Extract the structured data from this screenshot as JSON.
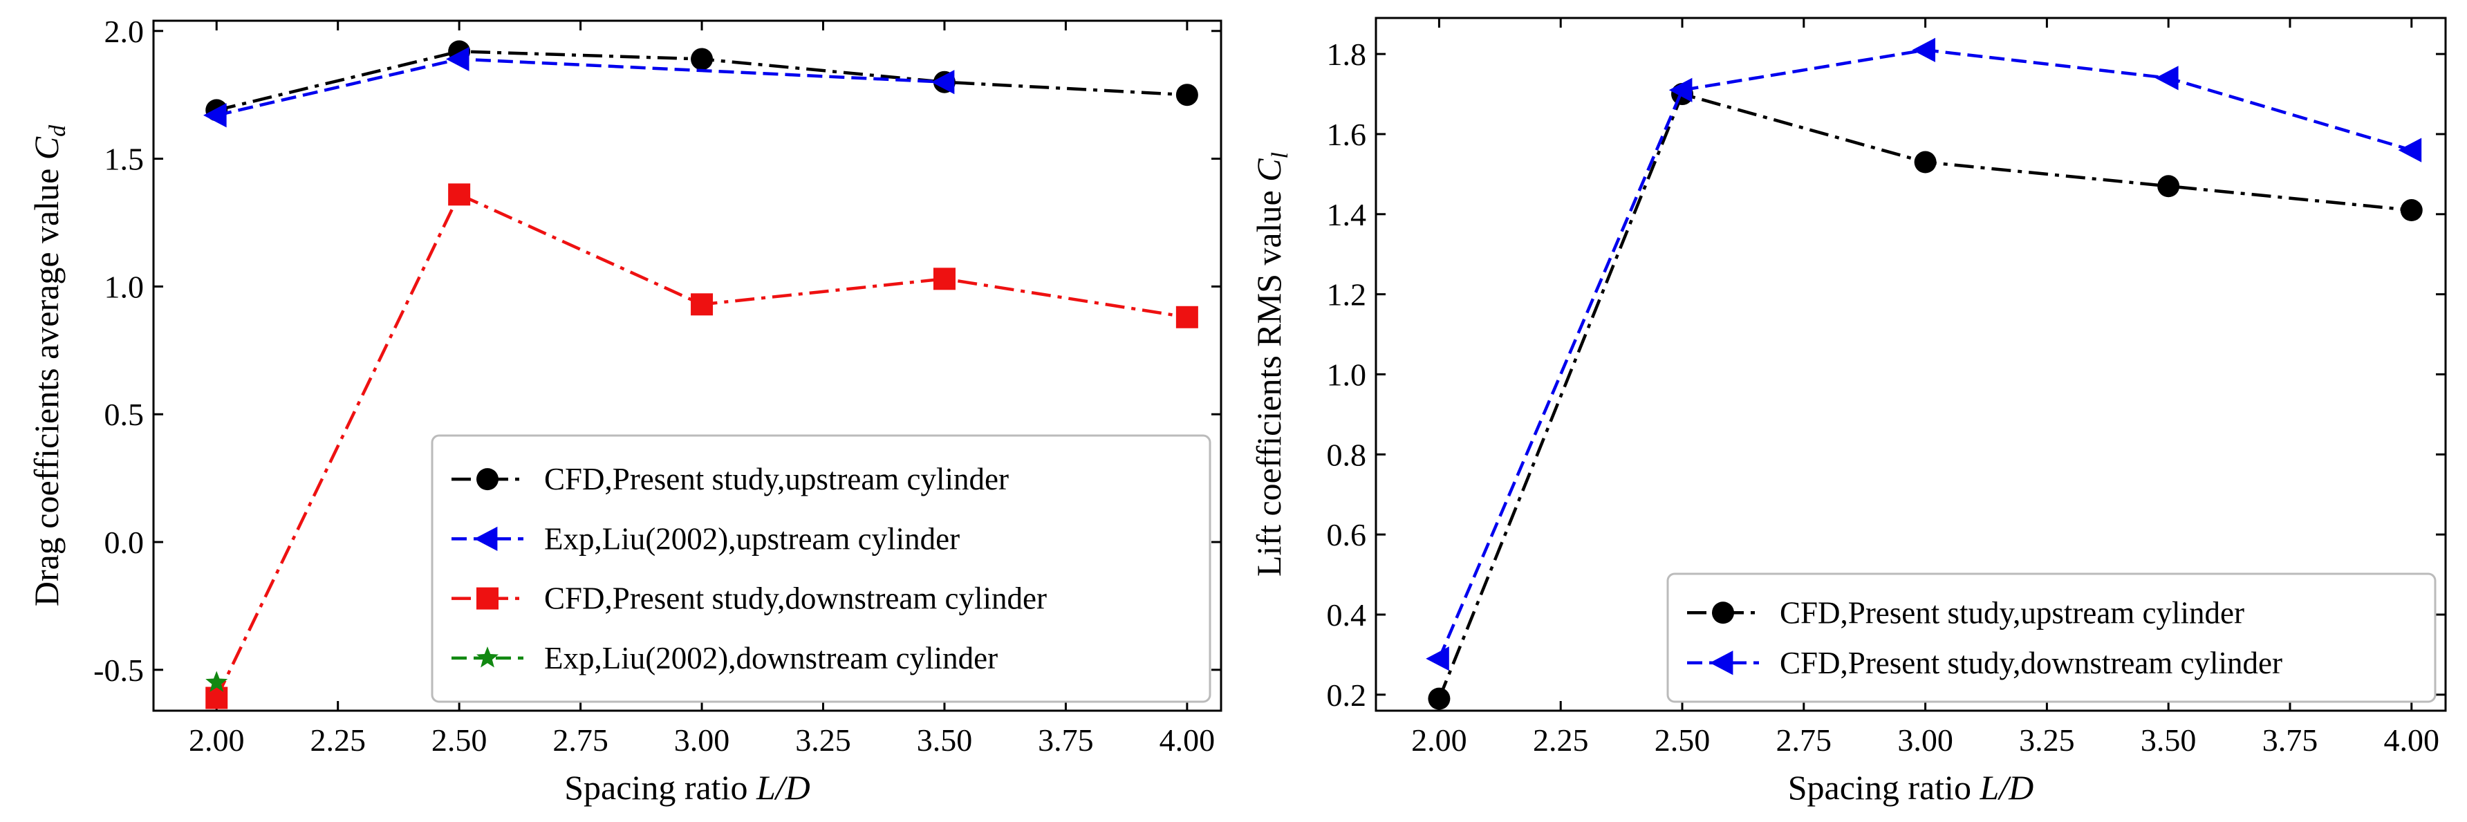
{
  "chart_data": [
    {
      "type": "line",
      "id": "drag",
      "title": "",
      "xlabel": "Spacing ratio",
      "xlabel_italic": "L/D",
      "ylabel": "Drag coefficients average value",
      "ylabel_symbol": "C",
      "ylabel_sub": "d",
      "xlim": [
        1.87,
        4.07
      ],
      "ylim": [
        -0.66,
        2.04
      ],
      "xticks": [
        2.0,
        2.25,
        2.5,
        2.75,
        3.0,
        3.25,
        3.5,
        3.75,
        4.0
      ],
      "xtick_labels": [
        "2.00",
        "2.25",
        "2.50",
        "2.75",
        "3.00",
        "3.25",
        "3.50",
        "3.75",
        "4.00"
      ],
      "yticks": [
        -0.5,
        0.0,
        0.5,
        1.0,
        1.5,
        2.0
      ],
      "ytick_labels": [
        "-0.5",
        "0.0",
        "0.5",
        "1.0",
        "1.5",
        "2.0"
      ],
      "legend_position": "lower-right",
      "series": [
        {
          "name": "CFD,Present study,upstream cylinder",
          "color": "#000000",
          "marker": "circle",
          "dash": "dashdot",
          "x": [
            2.0,
            2.5,
            3.0,
            3.5,
            4.0
          ],
          "y": [
            1.69,
            1.92,
            1.89,
            1.8,
            1.75
          ]
        },
        {
          "name": "Exp,Liu(2002),upstream cylinder",
          "color": "#0000ee",
          "marker": "triangle-left",
          "dash": "dashed",
          "x": [
            2.0,
            2.5,
            3.5
          ],
          "y": [
            1.67,
            1.89,
            1.8
          ]
        },
        {
          "name": "CFD,Present study,downstream cylinder",
          "color": "#ee1111",
          "marker": "square",
          "dash": "dashdot",
          "x": [
            2.0,
            2.5,
            3.0,
            3.5,
            4.0
          ],
          "y": [
            -0.61,
            1.36,
            0.93,
            1.03,
            0.88
          ]
        },
        {
          "name": "Exp,Liu(2002),downstream cylinder",
          "color": "#118811",
          "marker": "star",
          "dash": "dashed",
          "x": [
            2.0
          ],
          "y": [
            -0.55
          ]
        }
      ]
    },
    {
      "type": "line",
      "id": "lift",
      "title": "",
      "xlabel": "Spacing ratio",
      "xlabel_italic": "L/D",
      "ylabel": "Lift coefficients RMS value",
      "ylabel_symbol": "C",
      "ylabel_sub": "l",
      "xlim": [
        1.87,
        4.07
      ],
      "ylim": [
        0.16,
        1.89
      ],
      "xticks": [
        2.0,
        2.25,
        2.5,
        2.75,
        3.0,
        3.25,
        3.5,
        3.75,
        4.0
      ],
      "xtick_labels": [
        "2.00",
        "2.25",
        "2.50",
        "2.75",
        "3.00",
        "3.25",
        "3.50",
        "3.75",
        "4.00"
      ],
      "yticks": [
        0.2,
        0.4,
        0.6,
        0.8,
        1.0,
        1.2,
        1.4,
        1.6,
        1.8
      ],
      "ytick_labels": [
        "0.2",
        "0.4",
        "0.6",
        "0.8",
        "1.0",
        "1.2",
        "1.4",
        "1.6",
        "1.8"
      ],
      "legend_position": "lower-right",
      "series": [
        {
          "name": "CFD,Present study,upstream cylinder",
          "color": "#000000",
          "marker": "circle",
          "dash": "dashdot",
          "x": [
            2.0,
            2.5,
            3.0,
            3.5,
            4.0
          ],
          "y": [
            0.19,
            1.7,
            1.53,
            1.47,
            1.41
          ]
        },
        {
          "name": "CFD,Present study,downstream cylinder",
          "color": "#0000ee",
          "marker": "triangle-left",
          "dash": "dashed",
          "x": [
            2.0,
            2.5,
            3.0,
            3.5,
            4.0
          ],
          "y": [
            0.29,
            1.71,
            1.81,
            1.74,
            1.56
          ]
        }
      ]
    }
  ]
}
